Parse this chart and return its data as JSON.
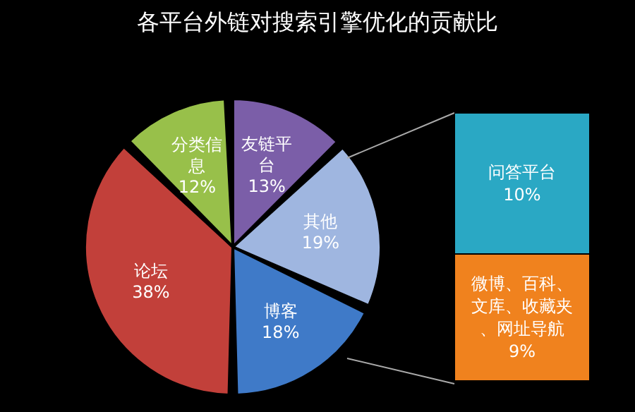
{
  "chart_data": [
    {
      "type": "pie",
      "title": "各平台外链对搜索引擎优化的贡献比",
      "categories": [
        "友链平台",
        "其他",
        "博客",
        "论坛",
        "分类信息"
      ],
      "values": [
        13,
        19,
        18,
        38,
        12
      ],
      "value_labels": [
        "13%",
        "19%",
        "18%",
        "38%",
        "12%"
      ],
      "colors": [
        "#7b5ea8",
        "#9fb6e0",
        "#3f7ac8",
        "#c2403a",
        "#98c04a"
      ]
    },
    {
      "type": "bar",
      "stacked": true,
      "categories": [
        null
      ],
      "series": [
        {
          "name": "微博、百科、文库、收藏夹、网址导航",
          "color": "#f0821e",
          "values": [
            9
          ],
          "value_labels": [
            "9%"
          ]
        },
        {
          "name": "问答平台",
          "color": "#2aa8c4",
          "values": [
            10
          ],
          "value_labels": [
            "10%"
          ]
        }
      ]
    }
  ]
}
